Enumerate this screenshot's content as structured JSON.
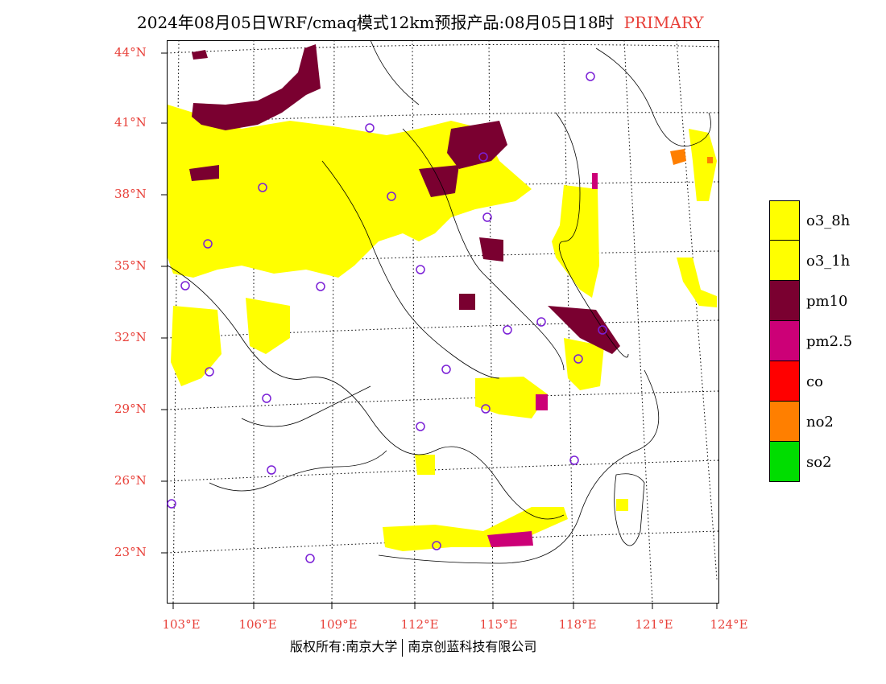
{
  "header": {
    "title": "2024年08月05日WRF/cmaq模式12km预报产品:08月05日18时",
    "primary_label": "PRIMARY",
    "primary_color": "#e8413a"
  },
  "axes": {
    "lat_labels": [
      "44°N",
      "41°N",
      "38°N",
      "35°N",
      "32°N",
      "29°N",
      "26°N",
      "23°N"
    ],
    "lon_labels": [
      "103°E",
      "106°E",
      "109°E",
      "112°E",
      "115°E",
      "118°E",
      "121°E",
      "124°E"
    ],
    "label_color": "#e8413a"
  },
  "legend": {
    "items": [
      {
        "label": "o3_8h",
        "color": "#ffff00"
      },
      {
        "label": "o3_1h",
        "color": "#ffff00"
      },
      {
        "label": "pm10",
        "color": "#7a0030"
      },
      {
        "label": "pm2.5",
        "color": "#cc0077"
      },
      {
        "label": "co",
        "color": "#ff0000"
      },
      {
        "label": "no2",
        "color": "#ff7f00"
      },
      {
        "label": "so2",
        "color": "#00dd00"
      }
    ]
  },
  "footer": {
    "copyright_left": "版权所有:南京大学",
    "copyright_right": "南京创蓝科技有限公司"
  },
  "colors": {
    "o3": "#ffff00",
    "pm10": "#7a0030",
    "pm25": "#cc0077",
    "no2": "#ff7f00",
    "station_marker": "#7a1fd6"
  }
}
